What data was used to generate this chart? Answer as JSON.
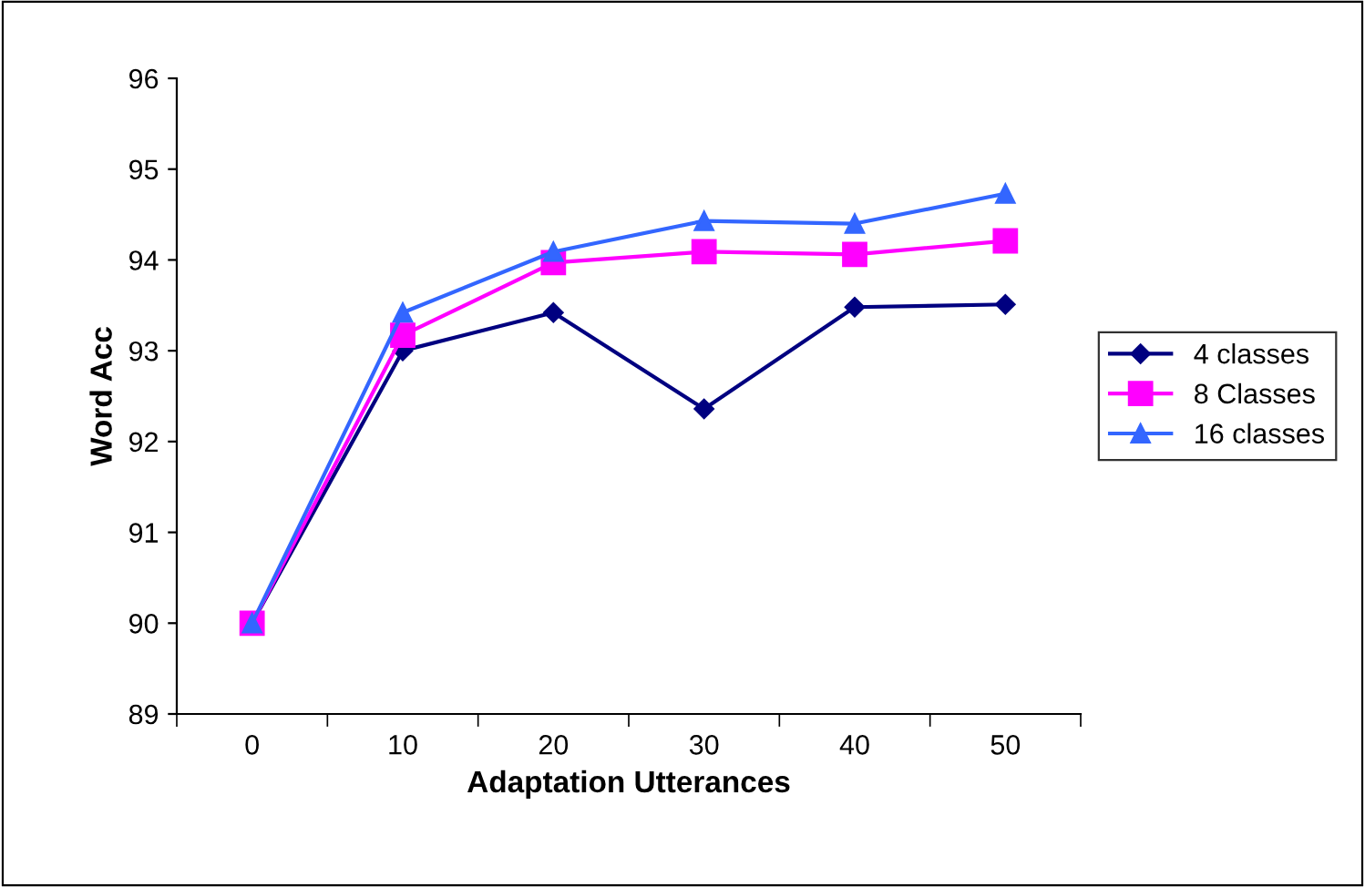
{
  "chart_data": {
    "type": "line",
    "xlabel": "Adaptation Utterances",
    "ylabel": "Word Acc",
    "categories": [
      "0",
      "10",
      "20",
      "30",
      "40",
      "50"
    ],
    "series": [
      {
        "name": "4 classes",
        "color": "#000080",
        "marker": "diamond",
        "values": [
          90.0,
          93.0,
          93.42,
          92.36,
          93.48,
          93.51
        ]
      },
      {
        "name": "8 Classes",
        "color": "#ff00ff",
        "marker": "square",
        "values": [
          90.0,
          93.17,
          93.97,
          94.09,
          94.06,
          94.21
        ]
      },
      {
        "name": "16 classes",
        "color": "#3366ff",
        "marker": "triangle",
        "values": [
          90.0,
          93.42,
          94.09,
          94.43,
          94.4,
          94.73
        ]
      }
    ],
    "ylim": [
      89,
      96
    ],
    "yticks": [
      89,
      90,
      91,
      92,
      93,
      94,
      95,
      96
    ],
    "grid": false,
    "legend": "right",
    "line_style": "solid"
  }
}
